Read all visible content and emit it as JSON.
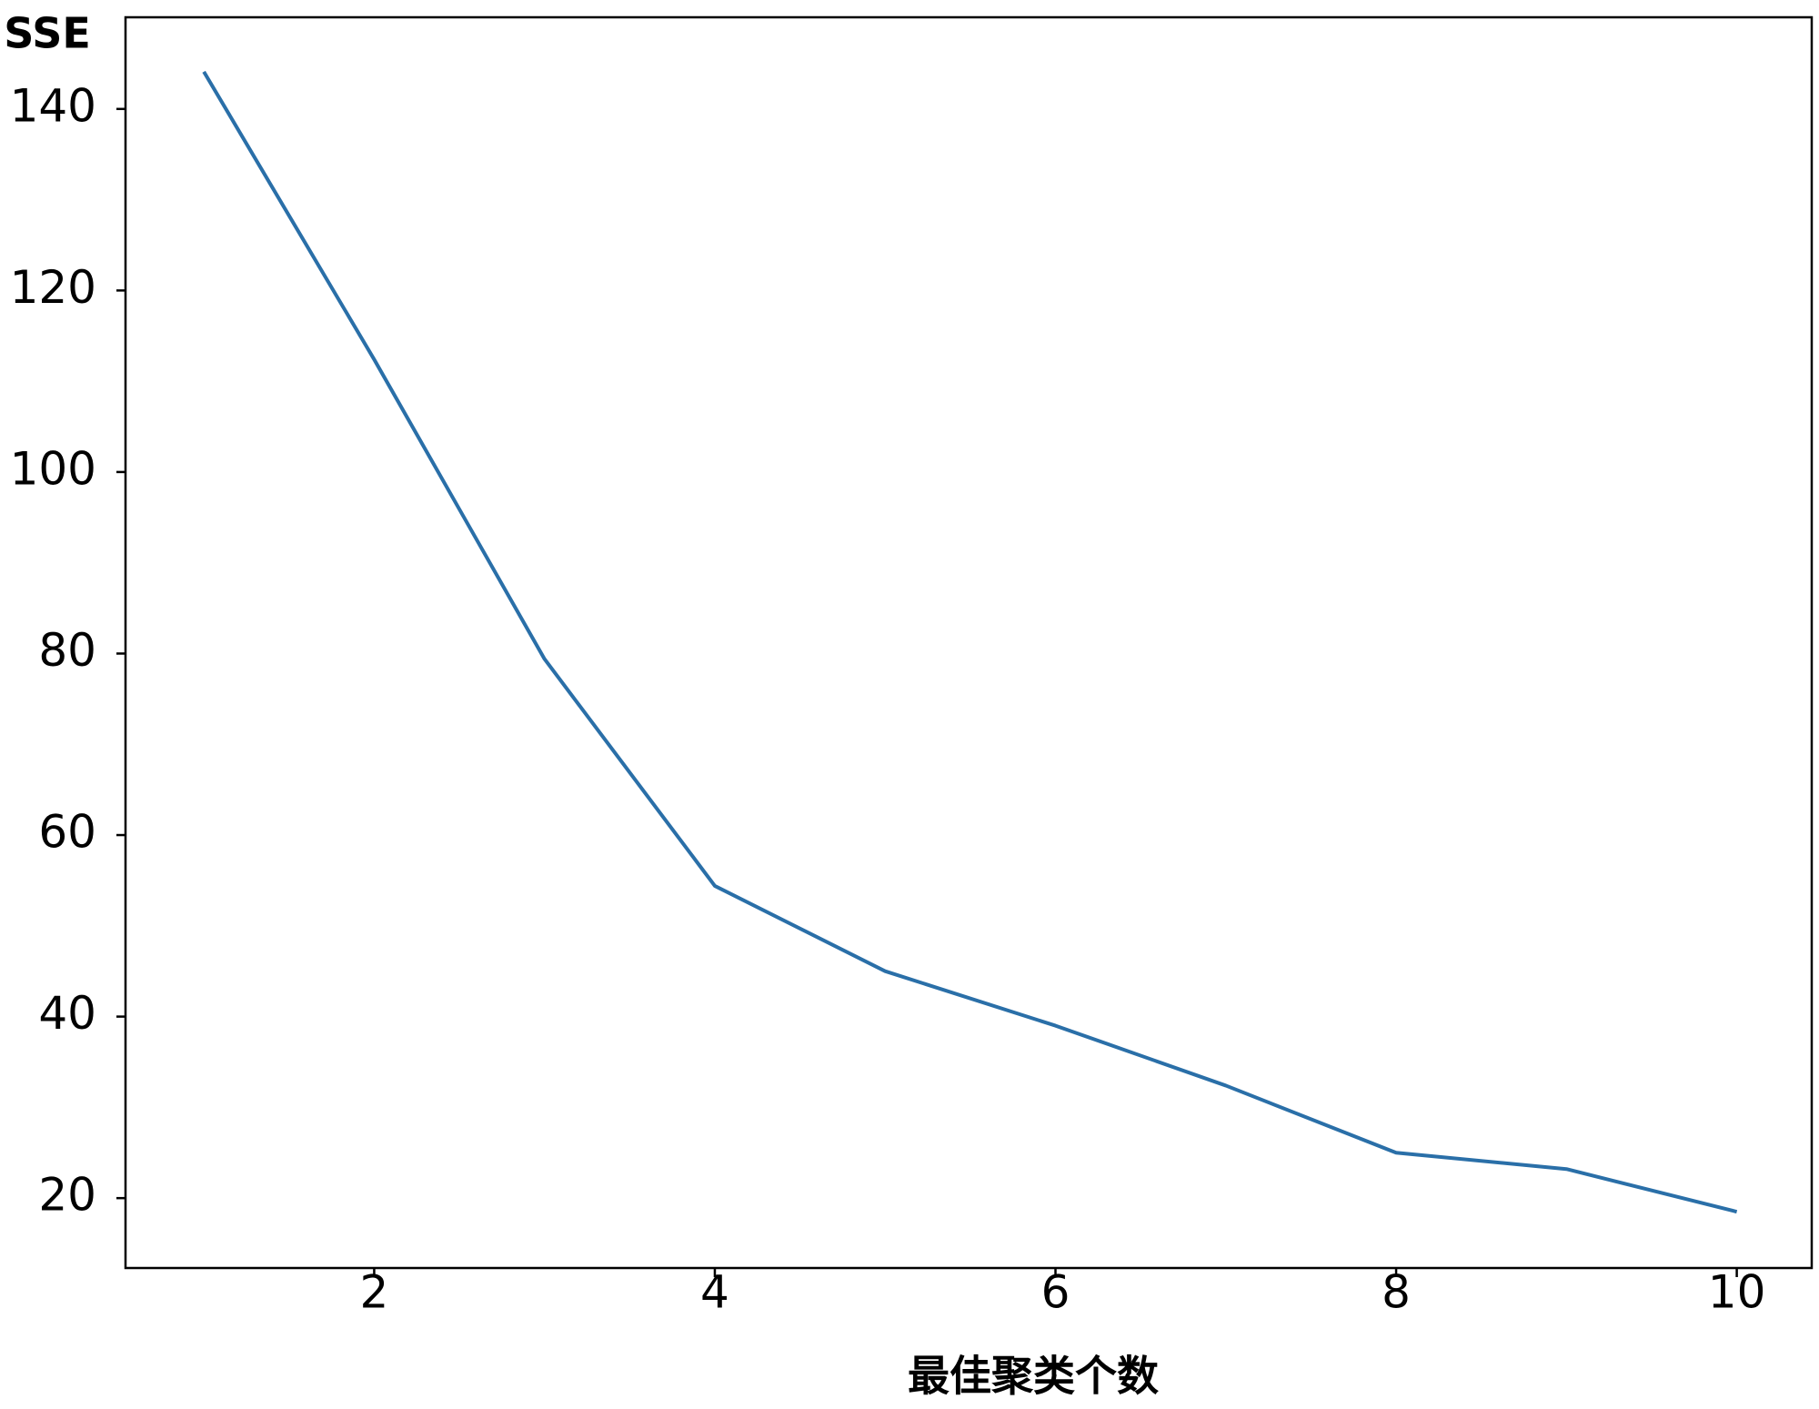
{
  "chart_data": {
    "type": "line",
    "x_label": "最佳聚类个数",
    "y_label": "SSE",
    "x": [
      1,
      2,
      3,
      4,
      5,
      6,
      7,
      8,
      9,
      10
    ],
    "series": [
      {
        "color": "#2a6fa8",
        "values": [
          144.1,
          112.4,
          79.4,
          54.4,
          45.0,
          39.0,
          32.4,
          25.0,
          23.2,
          18.5
        ]
      }
    ],
    "xlim": [
      0.54,
      10.44
    ],
    "xticks": [
      2,
      4,
      6,
      8,
      10
    ],
    "ylim": [
      12.3,
      150.1
    ],
    "yticks": [
      20,
      40,
      60,
      80,
      100,
      120,
      140
    ],
    "grid": false
  }
}
